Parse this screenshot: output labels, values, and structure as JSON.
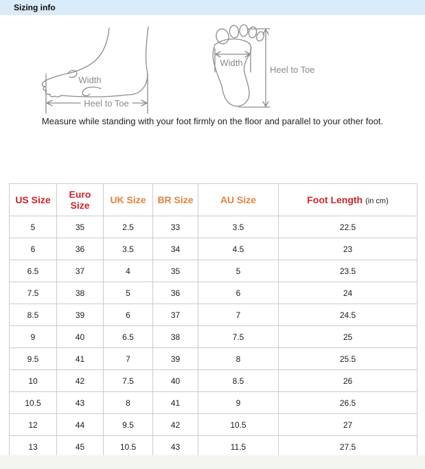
{
  "section_header": {
    "title": "Sizing info"
  },
  "measurement_guide": {
    "side_view": {
      "width_label": "Width",
      "length_label": "Heel to Toe"
    },
    "sole_view": {
      "width_label": "Width",
      "length_label": "Heel to Toe"
    },
    "instruction": "Measure while standing with your foot firmly on the floor and parallel to your other foot."
  },
  "colors": {
    "header_bar_bg": "#daecfa",
    "primary_heading_text": "#cc2229",
    "secondary_heading_text": "#e0823c",
    "table_border": "#cccccc",
    "diagram_stroke": "#8a8a8a",
    "footer_strip_bg": "#f2f5f0"
  },
  "size_table": {
    "columns": [
      {
        "label": "US Size",
        "suffix": "",
        "style": "primary"
      },
      {
        "label": "Euro Size",
        "suffix": "",
        "style": "primary"
      },
      {
        "label": "UK Size",
        "suffix": "",
        "style": "secondary"
      },
      {
        "label": "BR Size",
        "suffix": "",
        "style": "secondary"
      },
      {
        "label": "AU Size",
        "suffix": "",
        "style": "secondary"
      },
      {
        "label": "Foot Length",
        "suffix": "(in cm)",
        "style": "primary"
      }
    ],
    "rows": [
      [
        "5",
        "35",
        "2.5",
        "33",
        "3.5",
        "22.5"
      ],
      [
        "6",
        "36",
        "3.5",
        "34",
        "4.5",
        "23"
      ],
      [
        "6.5",
        "37",
        "4",
        "35",
        "5",
        "23.5"
      ],
      [
        "7.5",
        "38",
        "5",
        "36",
        "6",
        "24"
      ],
      [
        "8.5",
        "39",
        "6",
        "37",
        "7",
        "24.5"
      ],
      [
        "9",
        "40",
        "6.5",
        "38",
        "7.5",
        "25"
      ],
      [
        "9.5",
        "41",
        "7",
        "39",
        "8",
        "25.5"
      ],
      [
        "10",
        "42",
        "7.5",
        "40",
        "8.5",
        "26"
      ],
      [
        "10.5",
        "43",
        "8",
        "41",
        "9",
        "26.5"
      ],
      [
        "12",
        "44",
        "9.5",
        "42",
        "10.5",
        "27"
      ],
      [
        "13",
        "45",
        "10.5",
        "43",
        "11.5",
        "27.5"
      ]
    ]
  },
  "chart_data": {
    "type": "table",
    "title": "Sizing info",
    "columns": [
      "US Size",
      "Euro Size",
      "UK Size",
      "BR Size",
      "AU Size",
      "Foot Length (in cm)"
    ],
    "rows": [
      [
        5,
        35,
        2.5,
        33,
        3.5,
        22.5
      ],
      [
        6,
        36,
        3.5,
        34,
        4.5,
        23
      ],
      [
        6.5,
        37,
        4,
        35,
        5,
        23.5
      ],
      [
        7.5,
        38,
        5,
        36,
        6,
        24
      ],
      [
        8.5,
        39,
        6,
        37,
        7,
        24.5
      ],
      [
        9,
        40,
        6.5,
        38,
        7.5,
        25
      ],
      [
        9.5,
        41,
        7,
        39,
        8,
        25.5
      ],
      [
        10,
        42,
        7.5,
        40,
        8.5,
        26
      ],
      [
        10.5,
        43,
        8,
        41,
        9,
        26.5
      ],
      [
        12,
        44,
        9.5,
        42,
        10.5,
        27
      ],
      [
        13,
        45,
        10.5,
        43,
        11.5,
        27.5
      ]
    ]
  }
}
